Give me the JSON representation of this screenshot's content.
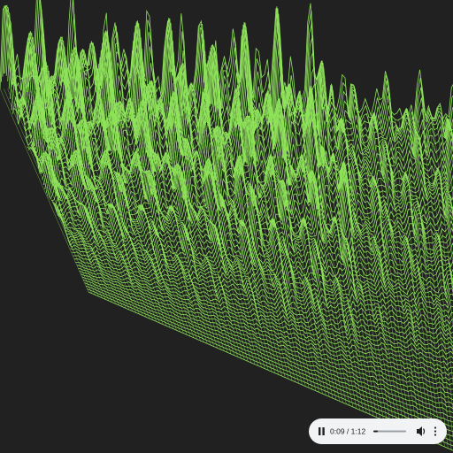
{
  "player": {
    "time_display": "0:09 / 1:12"
  }
}
